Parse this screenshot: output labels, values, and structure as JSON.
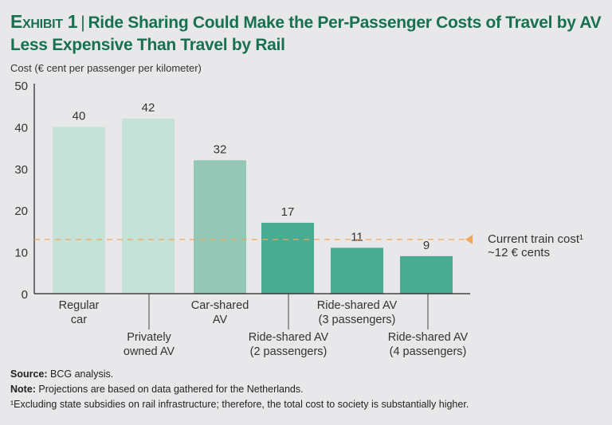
{
  "title": {
    "exhibit": "Exhibit 1",
    "separator": "|",
    "text": "Ride Sharing Could Make the Per-Passenger Costs of Travel by AV Less Expensive Than Travel by Rail"
  },
  "chart_data": {
    "type": "bar",
    "title": "Ride Sharing Could Make the Per-Passenger Costs of Travel by AV Less Expensive Than Travel by Rail",
    "ylabel": "Cost (€ cent per passenger per kilometer)",
    "xlabel": "",
    "ylim": [
      0,
      50
    ],
    "yticks": [
      0,
      10,
      20,
      30,
      40,
      50
    ],
    "grid": false,
    "categories": [
      [
        "Regular",
        "car"
      ],
      [
        "Privately",
        "owned AV"
      ],
      [
        "Car-shared",
        "AV"
      ],
      [
        "Ride-shared AV",
        "(2 passengers)"
      ],
      [
        "Ride-shared AV",
        "(3 passengers)"
      ],
      [
        "Ride-shared AV",
        "(4 passengers)"
      ]
    ],
    "values": [
      40,
      42,
      32,
      17,
      11,
      9
    ],
    "data_labels": [
      "40",
      "42",
      "32",
      "17",
      "11",
      "9"
    ],
    "bar_colors": [
      "#c6e2d8",
      "#c6e2d8",
      "#94c7b6",
      "#49ab92",
      "#49ab92",
      "#49ab92"
    ],
    "reference_line": {
      "value": 13,
      "label_line1": "Current train cost¹",
      "label_line2": "~12 € cents",
      "color": "#f2a65a",
      "style": "dashed"
    }
  },
  "footer": {
    "source_label": "Source:",
    "source_text": " BCG analysis.",
    "note_label": "Note:",
    "note_text": " Projections are based on data gathered for the Netherlands.",
    "footnote": "¹Excluding state subsidies on rail infrastructure; therefore, the total cost to society is substantially higher."
  }
}
